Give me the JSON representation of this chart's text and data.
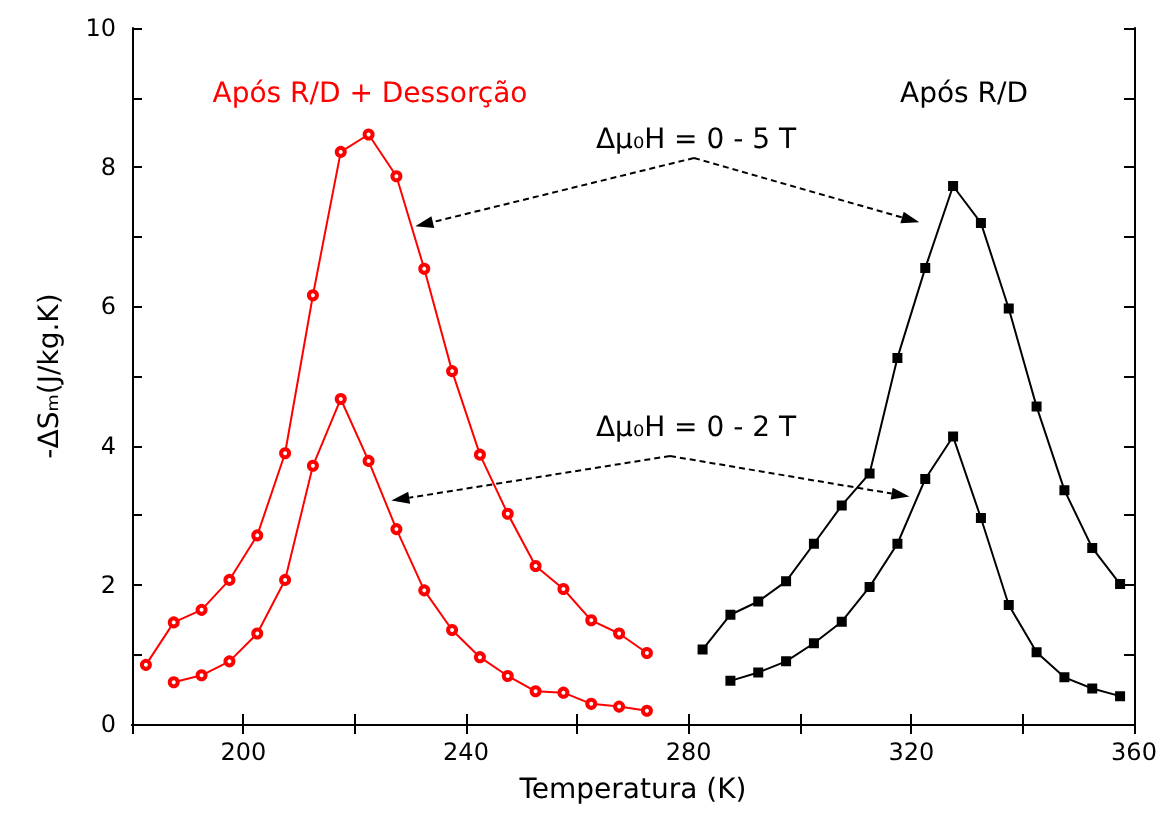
{
  "chart_data": {
    "type": "line",
    "xlabel": "Temperatura (K)",
    "ylabel": "-ΔSₘ(J/kg.K)",
    "xlim": [
      180,
      360
    ],
    "xticks": [
      {
        "value": 180,
        "label": null
      },
      200,
      {
        "value": 220,
        "label": null
      },
      240,
      {
        "value": 260,
        "label": null
      },
      280,
      {
        "value": 300,
        "label": null
      },
      320,
      {
        "value": 340,
        "label": null
      },
      360
    ],
    "ylim": [
      0,
      10
    ],
    "yticks": [
      0,
      {
        "value": 1,
        "label": null
      },
      2,
      {
        "value": 3,
        "label": null
      },
      4,
      {
        "value": 5,
        "label": null
      },
      6,
      {
        "value": 7,
        "label": null
      },
      8,
      {
        "value": 9,
        "label": null
      },
      10
    ],
    "grid": false,
    "line_style": "solid",
    "annotations": [
      "Após R/D + Dessorção",
      "Após R/D",
      {
        "text": "Δμ₀H = 0 - 5 T",
        "x": 230.9,
        "y": 7.15
      },
      {
        "text": "Δμ₀H = 0 - 2 T",
        "x": 226.6,
        "y": 3.21
      }
    ],
    "series": [
      {
        "color": "#ff0000",
        "marker": "circle",
        "x": [
          182.5,
          187.5,
          192.5,
          197.5,
          202.5,
          207.5,
          212.5,
          217.5,
          222.5,
          227.5,
          232.5,
          237.5,
          242.5,
          247.5,
          252.5,
          257.5,
          262.5,
          267.5,
          272.5
        ],
        "values": [
          0.85,
          1.46,
          1.64,
          2.07,
          2.71,
          3.89,
          6.16,
          8.22,
          8.47,
          7.87,
          6.54,
          5.07,
          3.87,
          3.02,
          2.27,
          1.94,
          1.49,
          1.3,
          1.02
        ]
      },
      {
        "color": "#ff0000",
        "marker": "circle",
        "x": [
          187.5,
          192.5,
          197.5,
          202.5,
          207.5,
          212.5,
          217.5,
          222.5,
          227.5,
          232.5,
          237.5,
          242.5,
          247.5,
          252.5,
          257.5,
          262.5,
          267.5,
          272.5
        ],
        "values": [
          0.6,
          0.7,
          0.9,
          1.3,
          2.07,
          3.71,
          4.67,
          3.78,
          2.8,
          1.92,
          1.35,
          0.96,
          0.69,
          0.47,
          0.45,
          0.29,
          0.25,
          0.19
        ]
      },
      {
        "color": "#000000",
        "marker": "square",
        "x": [
          282.5,
          287.5,
          292.5,
          297.5,
          302.5,
          307.5,
          312.5,
          317.5,
          322.5,
          327.5,
          332.5,
          337.5,
          342.5,
          347.5,
          352.5,
          357.5
        ],
        "values": [
          1.07,
          1.57,
          1.76,
          2.05,
          2.59,
          3.14,
          3.6,
          5.26,
          6.55,
          7.73,
          7.2,
          5.97,
          4.56,
          3.36,
          2.53,
          2.01
        ]
      },
      {
        "color": "#000000",
        "marker": "square",
        "x": [
          287.5,
          292.5,
          297.5,
          302.5,
          307.5,
          312.5,
          317.5,
          322.5,
          327.5,
          332.5,
          337.5,
          342.5,
          347.5,
          352.5,
          357.5
        ],
        "values": [
          0.62,
          0.74,
          0.9,
          1.16,
          1.47,
          1.97,
          2.59,
          3.52,
          4.13,
          2.96,
          1.71,
          1.03,
          0.67,
          0.51,
          0.4
        ]
      }
    ]
  }
}
